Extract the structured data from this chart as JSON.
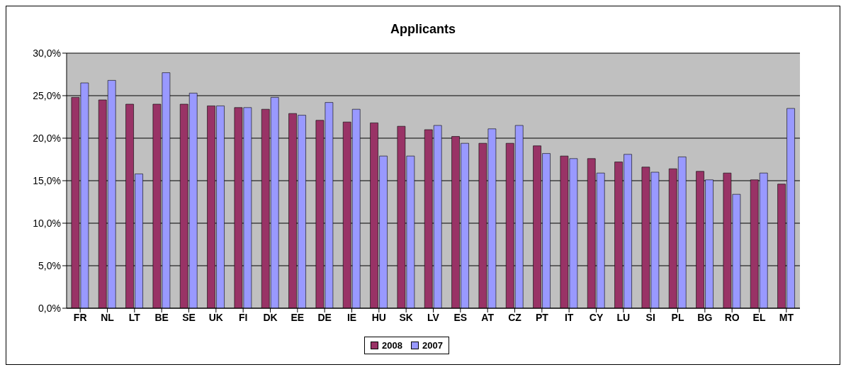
{
  "chart_data": {
    "type": "bar",
    "title": "Applicants",
    "categories": [
      "FR",
      "NL",
      "LT",
      "BE",
      "SE",
      "UK",
      "FI",
      "DK",
      "EE",
      "DE",
      "IE",
      "HU",
      "SK",
      "LV",
      "ES",
      "AT",
      "CZ",
      "PT",
      "IT",
      "CY",
      "LU",
      "SI",
      "PL",
      "BG",
      "RO",
      "EL",
      "MT"
    ],
    "series": [
      {
        "name": "2008",
        "color": "#993366",
        "values": [
          24.8,
          24.5,
          24.0,
          24.0,
          24.0,
          23.8,
          23.6,
          23.4,
          22.9,
          22.1,
          21.9,
          21.8,
          21.4,
          21.0,
          20.2,
          19.4,
          19.4,
          19.1,
          17.9,
          17.6,
          17.2,
          16.6,
          16.4,
          16.1,
          15.9,
          15.1,
          14.6
        ]
      },
      {
        "name": "2007",
        "color": "#9999ff",
        "values": [
          26.5,
          26.8,
          15.8,
          27.7,
          25.3,
          23.8,
          23.6,
          24.8,
          22.7,
          24.2,
          23.4,
          17.9,
          17.9,
          21.5,
          19.4,
          21.1,
          21.5,
          18.2,
          17.6,
          15.9,
          18.1,
          16.0,
          17.8,
          15.1,
          13.4,
          15.9,
          23.5
        ]
      }
    ],
    "ylim": [
      0,
      30
    ],
    "yticks": [
      {
        "value": 0,
        "label": "0,0%"
      },
      {
        "value": 5,
        "label": "5,0%"
      },
      {
        "value": 10,
        "label": "10,0%"
      },
      {
        "value": 15,
        "label": "15,0%"
      },
      {
        "value": 20,
        "label": "20,0%"
      },
      {
        "value": 25,
        "label": "25,0%"
      },
      {
        "value": 30,
        "label": "30,0%"
      }
    ],
    "grid": "y",
    "legend": "bottom"
  }
}
